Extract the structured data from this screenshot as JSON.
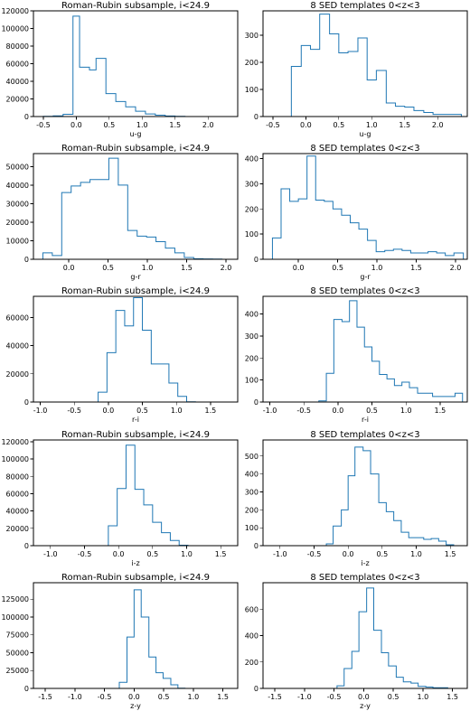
{
  "chart_data": [
    {
      "type": "histogram",
      "title": "Roman-Rubin subsample, i<24.9",
      "xlabel": "u-g",
      "xlim": [
        -0.65,
        2.45
      ],
      "ylim": [
        0,
        120000
      ],
      "xticks": [
        -0.5,
        0.0,
        0.5,
        1.0,
        1.5,
        2.0
      ],
      "xtick_labels": [
        "-0.5",
        "0.0",
        "0.5",
        "1.0",
        "1.5",
        "2.0"
      ],
      "yticks": [
        0,
        20000,
        40000,
        60000,
        80000,
        100000,
        120000
      ],
      "ytick_labels": [
        "0",
        "20000",
        "40000",
        "60000",
        "80000",
        "100000",
        "120000"
      ],
      "bin_edges": [
        -0.5,
        -0.35,
        -0.2,
        -0.05,
        0.05,
        0.2,
        0.3,
        0.45,
        0.6,
        0.75,
        0.9,
        1.05,
        1.2,
        1.35,
        1.5,
        1.65
      ],
      "counts": [
        300,
        800,
        2500,
        114000,
        56000,
        53000,
        66000,
        26000,
        17000,
        11000,
        6000,
        3000,
        1500,
        700,
        200
      ]
    },
    {
      "type": "histogram",
      "title": "8 SED templates 0<z<3",
      "xlabel": "u-g",
      "xlim": [
        -0.65,
        2.45
      ],
      "ylim": [
        0,
        390
      ],
      "xticks": [
        -0.5,
        0.0,
        0.5,
        1.0,
        1.5,
        2.0
      ],
      "xtick_labels": [
        "-0.5",
        "0.0",
        "0.5",
        "1.0",
        "1.5",
        "2.0"
      ],
      "yticks": [
        0,
        100,
        200,
        300
      ],
      "ytick_labels": [
        "0",
        "100",
        "200",
        "300"
      ],
      "bin_edges": [
        -0.22,
        -0.07,
        0.07,
        0.21,
        0.36,
        0.5,
        0.64,
        0.79,
        0.93,
        1.07,
        1.22,
        1.36,
        1.5,
        1.64,
        1.79,
        1.93,
        2.07,
        2.22,
        2.36
      ],
      "counts": [
        185,
        262,
        248,
        378,
        305,
        235,
        240,
        290,
        135,
        170,
        50,
        38,
        35,
        22,
        15,
        8,
        8,
        8
      ]
    },
    {
      "type": "histogram",
      "title": "Roman-Rubin subsample, i<24.9",
      "xlabel": "g-r",
      "xlim": [
        -0.45,
        2.15
      ],
      "ylim": [
        0,
        57000
      ],
      "xticks": [
        0.0,
        0.5,
        1.0,
        1.5,
        2.0
      ],
      "xtick_labels": [
        "0.0",
        "0.5",
        "1.0",
        "1.5",
        "2.0"
      ],
      "yticks": [
        0,
        10000,
        20000,
        30000,
        40000,
        50000
      ],
      "ytick_labels": [
        "0",
        "10000",
        "20000",
        "30000",
        "40000",
        "50000"
      ],
      "bin_edges": [
        -0.33,
        -0.21,
        -0.09,
        0.03,
        0.15,
        0.27,
        0.39,
        0.51,
        0.63,
        0.75,
        0.87,
        0.99,
        1.11,
        1.23,
        1.35,
        1.47,
        1.59,
        1.71,
        1.83,
        1.95
      ],
      "counts": [
        3500,
        2000,
        36000,
        39500,
        41500,
        43000,
        43000,
        54500,
        40000,
        15500,
        12500,
        12000,
        9500,
        6000,
        3500,
        1000,
        300,
        200,
        100
      ]
    },
    {
      "type": "histogram",
      "title": "8 SED templates 0<z<3",
      "xlabel": "g-r",
      "xlim": [
        -0.45,
        2.15
      ],
      "ylim": [
        0,
        420
      ],
      "xticks": [
        0.0,
        0.5,
        1.0,
        1.5,
        2.0
      ],
      "xtick_labels": [
        "0.0",
        "0.5",
        "1.0",
        "1.5",
        "2.0"
      ],
      "yticks": [
        0,
        100,
        200,
        300,
        400
      ],
      "ytick_labels": [
        "0",
        "100",
        "200",
        "300",
        "400"
      ],
      "bin_edges": [
        -0.33,
        -0.22,
        -0.11,
        0.0,
        0.11,
        0.22,
        0.33,
        0.44,
        0.55,
        0.66,
        0.77,
        0.88,
        0.99,
        1.1,
        1.21,
        1.32,
        1.43,
        1.54,
        1.65,
        1.76,
        1.87,
        1.98,
        2.1
      ],
      "counts": [
        85,
        280,
        230,
        240,
        410,
        235,
        230,
        200,
        175,
        145,
        120,
        75,
        30,
        35,
        40,
        35,
        25,
        25,
        30,
        25,
        15,
        25
      ]
    },
    {
      "type": "histogram",
      "title": "Roman-Rubin subsample, i<24.9",
      "xlabel": "r-i",
      "xlim": [
        -1.1,
        1.9
      ],
      "ylim": [
        0,
        75000
      ],
      "xticks": [
        -1.0,
        -0.5,
        0.0,
        0.5,
        1.0,
        1.5
      ],
      "xtick_labels": [
        "-1.0",
        "-0.5",
        "0.0",
        "0.5",
        "1.0",
        "1.5"
      ],
      "yticks": [
        0,
        20000,
        40000,
        60000
      ],
      "ytick_labels": [
        "0",
        "20000",
        "40000",
        "60000"
      ],
      "bin_edges": [
        -0.15,
        -0.02,
        0.11,
        0.24,
        0.37,
        0.5,
        0.63,
        0.76,
        0.89,
        1.02,
        1.15,
        1.28
      ],
      "counts": [
        7000,
        35000,
        65000,
        54000,
        74000,
        51000,
        27000,
        27000,
        13500,
        4000,
        200
      ]
    },
    {
      "type": "histogram",
      "title": "8 SED templates 0<z<3",
      "xlabel": "r-i",
      "xlim": [
        -1.1,
        1.9
      ],
      "ylim": [
        0,
        480
      ],
      "xticks": [
        -1.0,
        -0.5,
        0.0,
        0.5,
        1.0,
        1.5
      ],
      "xtick_labels": [
        "-1.0",
        "-0.5",
        "0.0",
        "0.5",
        "1.0",
        "1.5"
      ],
      "yticks": [
        0,
        100,
        200,
        300,
        400
      ],
      "ytick_labels": [
        "0",
        "100",
        "200",
        "300",
        "400"
      ],
      "bin_edges": [
        -0.28,
        -0.17,
        -0.06,
        0.06,
        0.17,
        0.28,
        0.39,
        0.5,
        0.61,
        0.72,
        0.83,
        0.94,
        1.05,
        1.17,
        1.28,
        1.39,
        1.5,
        1.61,
        1.72,
        1.83
      ],
      "counts": [
        5,
        130,
        375,
        365,
        460,
        340,
        250,
        185,
        125,
        105,
        75,
        90,
        65,
        40,
        40,
        25,
        25,
        25,
        40
      ]
    },
    {
      "type": "histogram",
      "title": "Roman-Rubin subsample, i<24.9",
      "xlabel": "i-z",
      "xlim": [
        -1.25,
        1.75
      ],
      "ylim": [
        0,
        122000
      ],
      "xticks": [
        -1.0,
        -0.5,
        0.0,
        0.5,
        1.0,
        1.5
      ],
      "xtick_labels": [
        "-1.0",
        "-0.5",
        "0.0",
        "0.5",
        "1.0",
        "1.5"
      ],
      "yticks": [
        0,
        20000,
        40000,
        60000,
        80000,
        100000,
        120000
      ],
      "ytick_labels": [
        "0",
        "20000",
        "40000",
        "60000",
        "80000",
        "100000",
        "120000"
      ],
      "bin_edges": [
        -0.15,
        -0.02,
        0.11,
        0.24,
        0.37,
        0.5,
        0.63,
        0.76,
        0.89,
        1.02
      ],
      "counts": [
        23000,
        66000,
        116000,
        65000,
        47000,
        27000,
        15000,
        6000,
        500
      ]
    },
    {
      "type": "histogram",
      "title": "8 SED templates 0<z<3",
      "xlabel": "i-z",
      "xlim": [
        -1.25,
        1.75
      ],
      "ylim": [
        0,
        590
      ],
      "xticks": [
        -1.0,
        -0.5,
        0.0,
        0.5,
        1.0,
        1.5
      ],
      "xtick_labels": [
        "-1.0",
        "-0.5",
        "0.0",
        "0.5",
        "1.0",
        "1.5"
      ],
      "yticks": [
        0,
        100,
        200,
        300,
        400,
        500
      ],
      "ytick_labels": [
        "0",
        "100",
        "200",
        "300",
        "400",
        "500"
      ],
      "bin_edges": [
        -0.32,
        -0.22,
        -0.1,
        0.0,
        0.1,
        0.22,
        0.33,
        0.45,
        0.56,
        0.67,
        0.78,
        0.89,
        1.0,
        1.11,
        1.22,
        1.33,
        1.44,
        1.55
      ],
      "counts": [
        10,
        110,
        200,
        390,
        550,
        530,
        400,
        240,
        190,
        140,
        75,
        45,
        45,
        35,
        40,
        25,
        5
      ]
    },
    {
      "type": "histogram",
      "title": "Roman-Rubin subsample, i<24.9",
      "xlabel": "z-y",
      "xlim": [
        -1.7,
        1.75
      ],
      "ylim": [
        0,
        148000
      ],
      "xticks": [
        -1.5,
        -1.0,
        -0.5,
        0.0,
        0.5,
        1.0,
        1.5
      ],
      "xtick_labels": [
        "-1.5",
        "-1.0",
        "-0.5",
        "0.0",
        "0.5",
        "1.0",
        "1.5"
      ],
      "yticks": [
        0,
        25000,
        50000,
        75000,
        100000,
        125000
      ],
      "ytick_labels": [
        "0",
        "25000",
        "50000",
        "75000",
        "100000",
        "125000"
      ],
      "bin_edges": [
        -0.25,
        -0.12,
        0.0,
        0.12,
        0.25,
        0.37,
        0.49,
        0.62,
        0.74,
        0.86
      ],
      "counts": [
        8500,
        72000,
        138000,
        100000,
        44000,
        22000,
        14000,
        5000,
        300
      ]
    },
    {
      "type": "histogram",
      "title": "8 SED templates 0<z<3",
      "xlabel": "z-y",
      "xlim": [
        -1.7,
        1.75
      ],
      "ylim": [
        0,
        800
      ],
      "xticks": [
        -1.5,
        -1.0,
        -0.5,
        0.0,
        0.5,
        1.0,
        1.5
      ],
      "xtick_labels": [
        "-1.5",
        "-1.0",
        "-0.5",
        "0.0",
        "0.5",
        "1.0",
        "1.5"
      ],
      "yticks": [
        0,
        200,
        400,
        600
      ],
      "ytick_labels": [
        "0",
        "200",
        "400",
        "600"
      ],
      "bin_edges": [
        -0.45,
        -0.33,
        -0.2,
        -0.08,
        0.05,
        0.17,
        0.3,
        0.42,
        0.55,
        0.67,
        0.8,
        0.92,
        1.05,
        1.17,
        1.3,
        1.42
      ],
      "counts": [
        20,
        150,
        280,
        580,
        760,
        440,
        270,
        170,
        85,
        50,
        40,
        15,
        10,
        5,
        5
      ]
    }
  ]
}
